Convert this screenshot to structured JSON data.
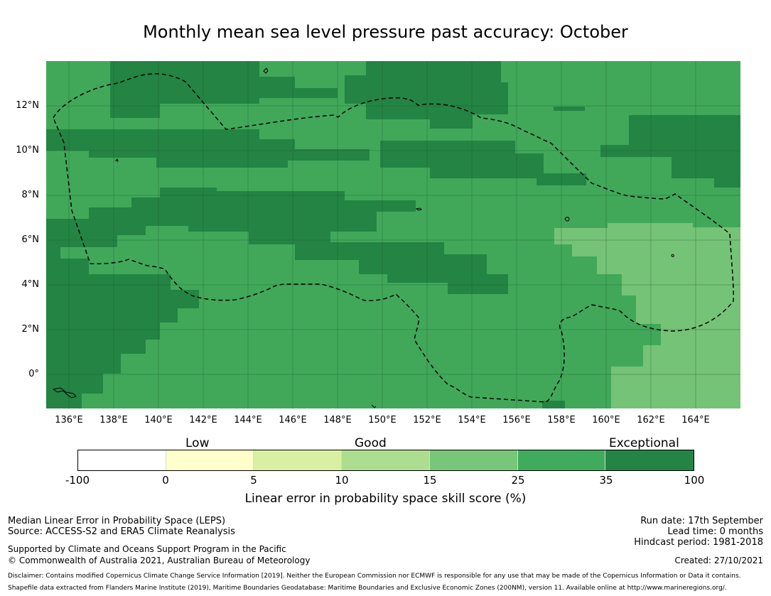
{
  "title": "Monthly mean sea level pressure past accuracy: October",
  "map": {
    "x_ticks": [
      "136°E",
      "138°E",
      "140°E",
      "142°E",
      "144°E",
      "146°E",
      "148°E",
      "150°E",
      "152°E",
      "154°E",
      "156°E",
      "158°E",
      "160°E",
      "162°E",
      "164°E"
    ],
    "y_ticks": [
      "12°N",
      "10°N",
      "8°N",
      "6°N",
      "4°N",
      "2°N",
      "0°"
    ],
    "lon_range": [
      135,
      166
    ],
    "lat_range": [
      -1.5,
      14
    ],
    "grid": true,
    "boundary_line": "dashed"
  },
  "colorbar": {
    "categories": [
      "Low",
      "Good",
      "Exceptional"
    ],
    "ticks": [
      "-100",
      "0",
      "5",
      "10",
      "15",
      "25",
      "35",
      "100"
    ],
    "colors": [
      "#ffffff",
      "#ffffcc",
      "#d9f0a3",
      "#addd8e",
      "#78c679",
      "#41ab5d",
      "#238443"
    ],
    "label": "Linear error in probability space skill score (%)"
  },
  "footer": {
    "line1": "Median Linear Error in Probability Space (LEPS)",
    "line2": "Source: ACCESS-S2 and ERA5 Climate Reanalysis",
    "line3": "Supported by Climate and Oceans Support Program in the Pacific",
    "line4": "© Commonwealth of Australia 2021, Australian Bureau of Meteorology",
    "run_date": "Run date: 17th September",
    "lead_time": "Lead time: 0 months",
    "hindcast": "Hindcast period: 1981-2018",
    "created": "Created: 27/10/2021",
    "disclaimer1": "Disclaimer: Contains modified Copernicus Climate Change Service Information [2019]. Neither the European Commission nor ECMWF is responsible for any use that may be made of the Copernicus Information or Data it contains.",
    "disclaimer2": "Shapefile data extracted from Flanders Marine Institute (2019), Maritime Boundaries Geodatabase: Maritime Boundaries and Exclusive Economic Zones (200NM), version 11. Available online at http://www.marineregions.org/."
  }
}
